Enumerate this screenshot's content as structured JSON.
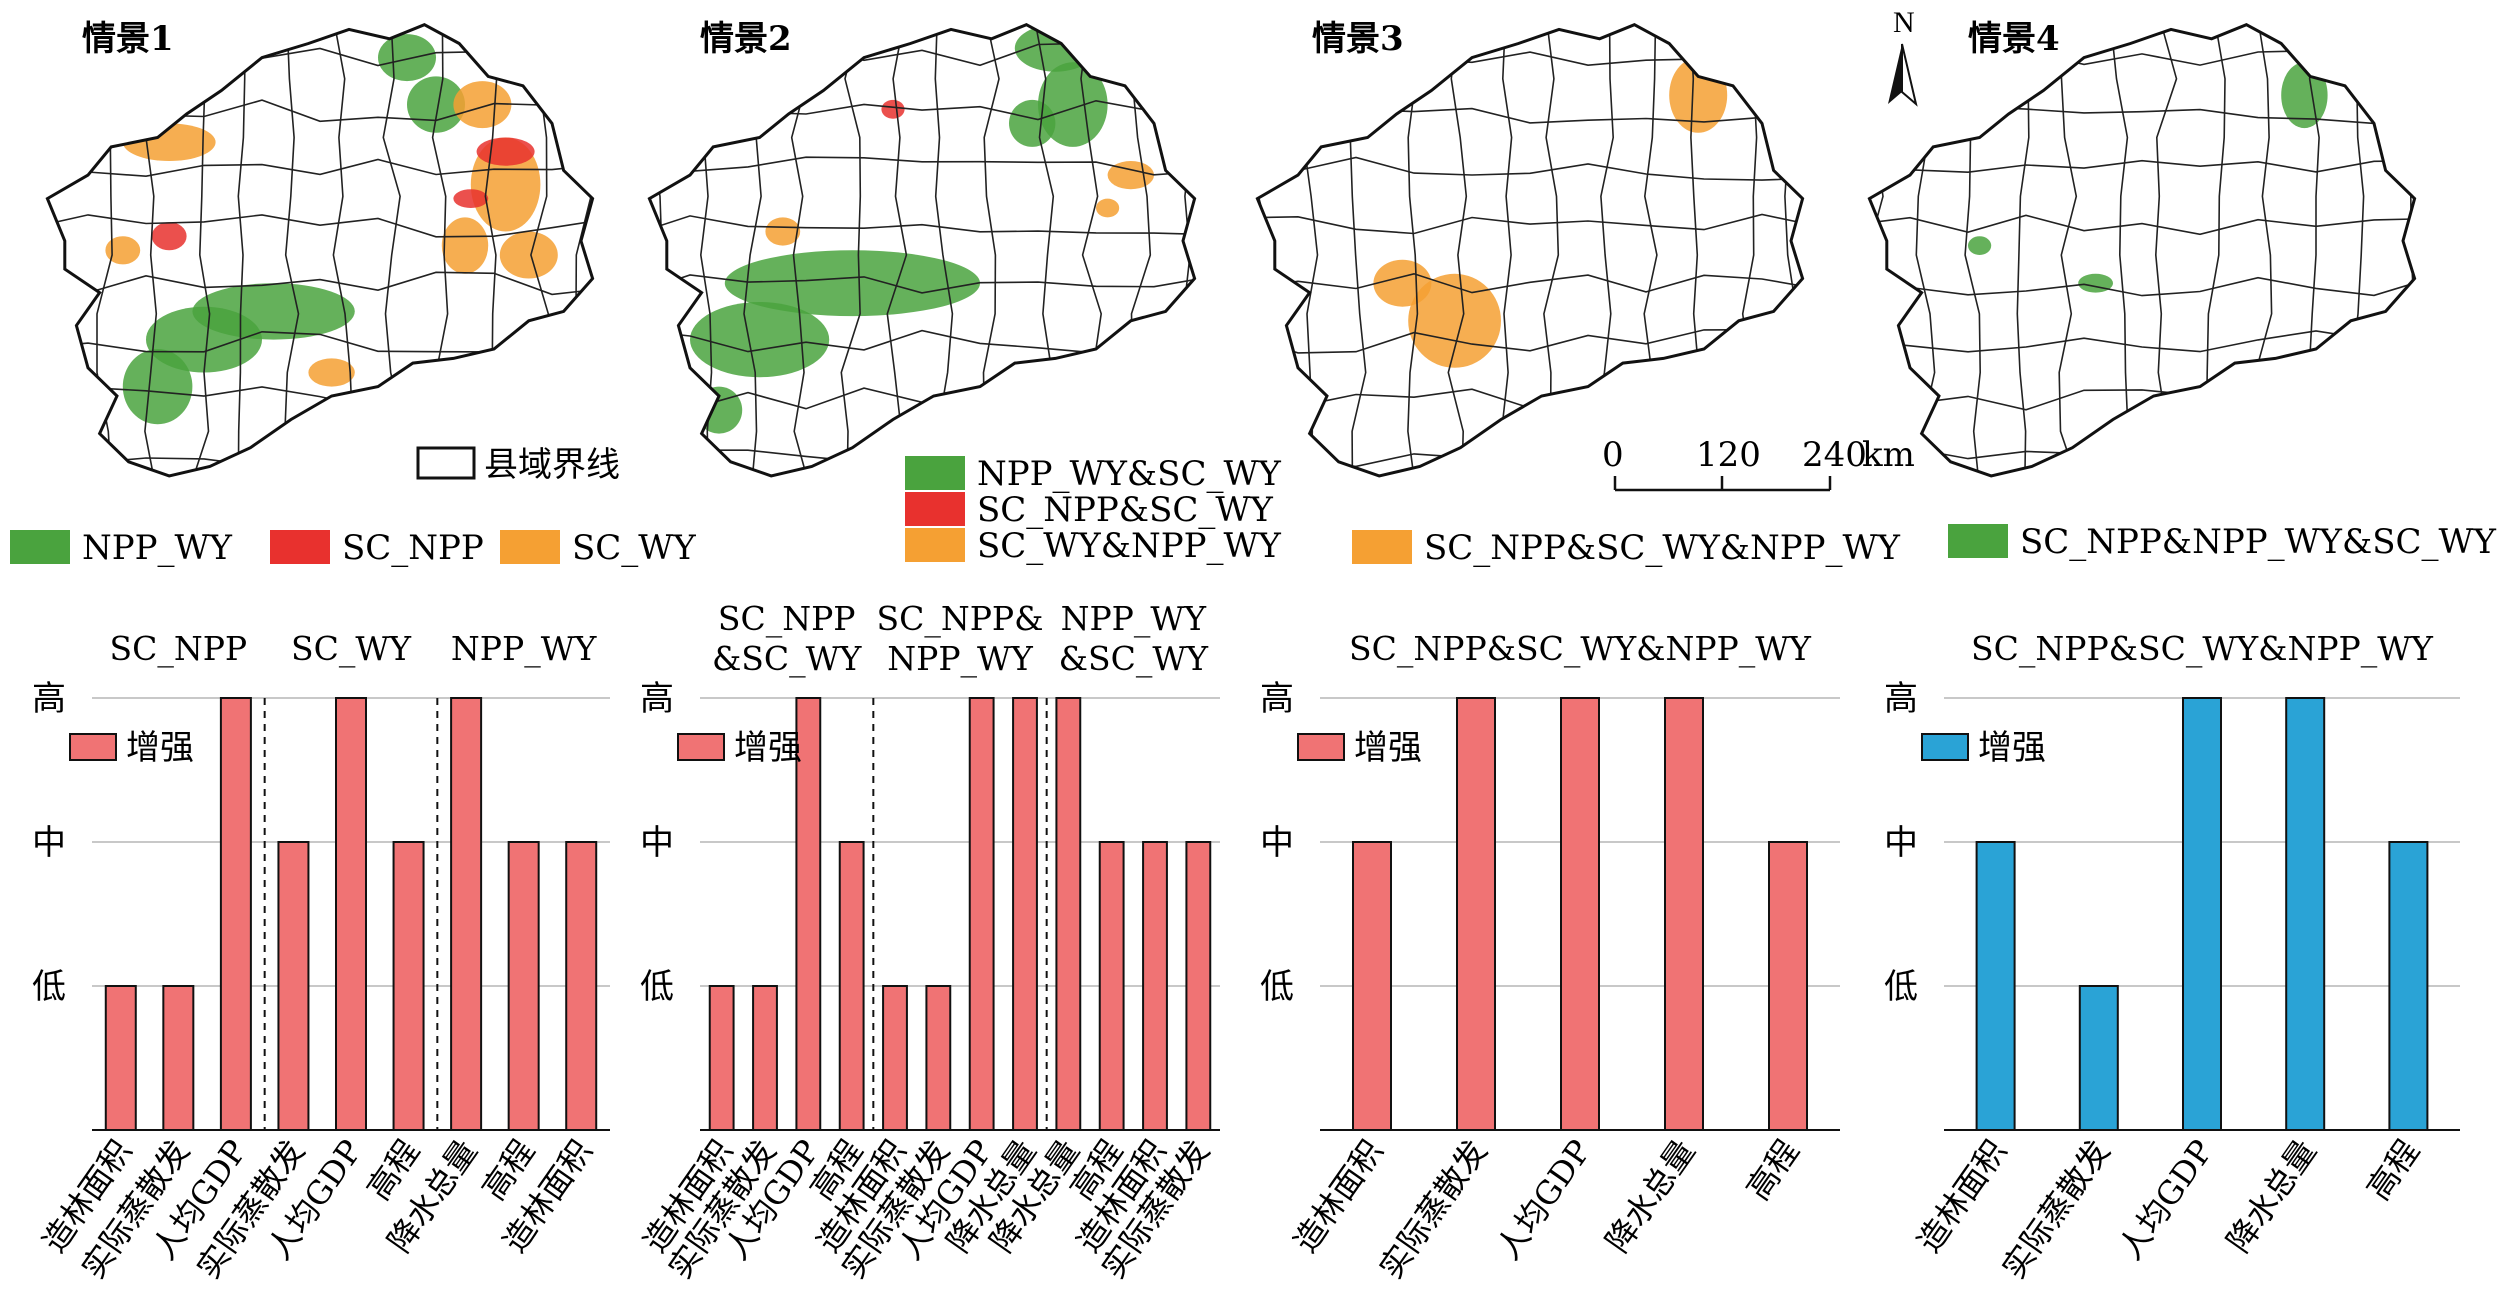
{
  "maps": [
    {
      "title": "情景1"
    },
    {
      "title": "情景2"
    },
    {
      "title": "情景3"
    },
    {
      "title": "情景4"
    }
  ],
  "north_label": "N",
  "boundary_legend": "县域界线",
  "scalebar": {
    "ticks": [
      "0",
      "120",
      "240"
    ],
    "unit": "km"
  },
  "legends": {
    "scenario1": [
      {
        "label": "NPP_WY",
        "color": "#4aa33e"
      },
      {
        "label": "SC_NPP",
        "color": "#e8312e"
      },
      {
        "label": "SC_WY",
        "color": "#f5a033"
      }
    ],
    "scenario2": [
      {
        "label": "NPP_WY&SC_WY",
        "color": "#4aa33e"
      },
      {
        "label": "SC_NPP&SC_WY",
        "color": "#e8312e"
      },
      {
        "label": "SC_WY&NPP_WY",
        "color": "#f5a033"
      }
    ],
    "scenario3": [
      {
        "label": "SC_NPP&SC_WY&NPP_WY",
        "color": "#f5a033"
      }
    ],
    "scenario4": [
      {
        "label": "SC_NPP&NPP_WY&SC_WY",
        "color": "#4aa33e"
      }
    ]
  },
  "colors": {
    "map_green": "#4aa33e",
    "map_red": "#e8312e",
    "map_orange": "#f5a033",
    "bar_pink": "#f07374",
    "bar_blue": "#2aa3d6"
  },
  "chart_data": [
    {
      "type": "bar",
      "yticks": [
        "低",
        "中",
        "高"
      ],
      "legend": "增强",
      "color": "#f07374",
      "groups": [
        "SC_NPP",
        "SC_WY",
        "NPP_WY"
      ],
      "categories": [
        "造林面积",
        "实际蒸散发",
        "人均GDP",
        "实际蒸散发",
        "人均GDP",
        "高程",
        "降水总量",
        "高程",
        "造林面积"
      ],
      "values": [
        1,
        1,
        3,
        2,
        3,
        2,
        3,
        2,
        2
      ],
      "group_sizes": [
        3,
        3,
        3
      ]
    },
    {
      "type": "bar",
      "yticks": [
        "低",
        "中",
        "高"
      ],
      "legend": "增强",
      "color": "#f07374",
      "groups": [
        "SC_NPP\n&SC_WY",
        "SC_NPP&\nNPP_WY",
        "NPP_WY\n&SC_WY"
      ],
      "categories": [
        "造林面积",
        "实际蒸散发",
        "人均GDP",
        "高程",
        "造林面积",
        "实际蒸散发",
        "人均GDP",
        "降水总量",
        "降水总量",
        "高程",
        "造林面积",
        "实际蒸散发"
      ],
      "values": [
        1,
        1,
        3,
        2,
        1,
        1,
        3,
        3,
        3,
        2,
        2,
        2
      ],
      "group_sizes": [
        4,
        4,
        4
      ]
    },
    {
      "type": "bar",
      "yticks": [
        "低",
        "中",
        "高"
      ],
      "legend": "增强",
      "color": "#f07374",
      "groups": [
        "SC_NPP&SC_WY&NPP_WY"
      ],
      "categories": [
        "造林面积",
        "实际蒸散发",
        "人均GDP",
        "降水总量",
        "高程"
      ],
      "values": [
        2,
        3,
        3,
        3,
        2
      ],
      "group_sizes": [
        5
      ]
    },
    {
      "type": "bar",
      "yticks": [
        "低",
        "中",
        "高"
      ],
      "legend": "增强",
      "color": "#2aa3d6",
      "groups": [
        "SC_NPP&SC_WY&NPP_WY"
      ],
      "categories": [
        "造林面积",
        "实际蒸散发",
        "人均GDP",
        "降水总量",
        "高程"
      ],
      "values": [
        2,
        1,
        3,
        3,
        2
      ],
      "group_sizes": [
        5
      ]
    }
  ]
}
